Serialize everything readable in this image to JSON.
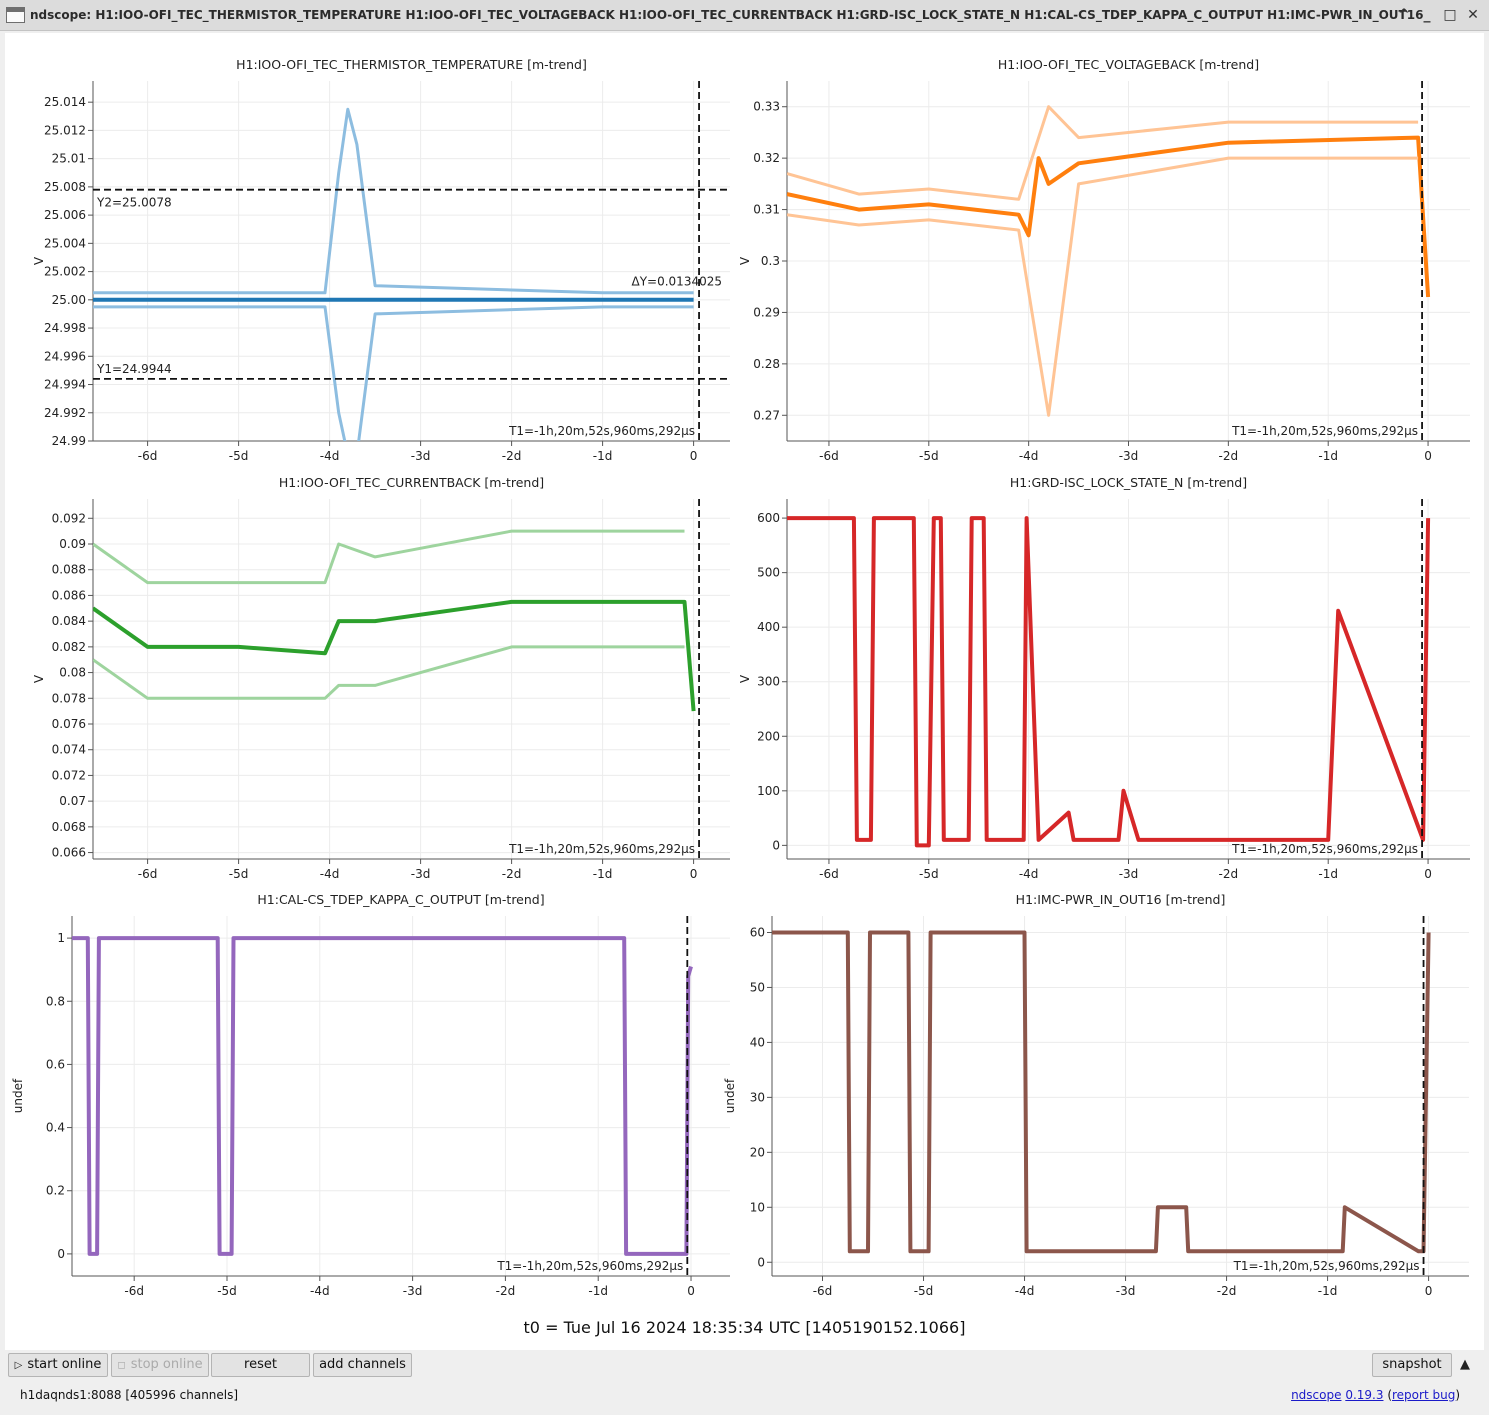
{
  "window": {
    "title": "ndscope: H1:IOO-OFI_TEC_THERMISTOR_TEMPERATURE H1:IOO-OFI_TEC_VOLTAGEBACK H1:IOO-OFI_TEC_CURRENTBACK H1:GRD-ISC_LOCK_STATE_N H1:CAL-CS_TDEP_KAPPA_C_OUTPUT H1:IMC-PWR_IN_OUT16",
    "controls": [
      "^",
      "_",
      "□",
      "✕"
    ]
  },
  "x_tick_labels": [
    "-6d",
    "-5d",
    "-4d",
    "-3d",
    "-2d",
    "-1d",
    "0"
  ],
  "cursor_T1": "T1=-1h,20m,52s,960ms,292µs",
  "t0_label": "t0 = Tue Jul 16 2024 18:35:34 UTC [1405190152.1066]",
  "buttons": {
    "start_online": "start online",
    "stop_online": "stop online",
    "reset": "reset",
    "add_channels": "add channels",
    "snapshot": "snapshot"
  },
  "status": {
    "server": "h1daqnds1:8088  [405996 channels]",
    "app_name": "ndscope",
    "version": "0.19.3",
    "report_bug": "report bug"
  },
  "chart_data": [
    {
      "type": "line",
      "title": "H1:IOO-OFI_TEC_THERMISTOR_TEMPERATURE [m-trend]",
      "ylabel": "V",
      "color": "#1f77b4",
      "band_color": "#8dbde0",
      "xlim": [
        -6.6,
        0.4
      ],
      "ylim": [
        24.99,
        25.0155
      ],
      "y_tick_labels": [
        "25.014",
        "25.012",
        "25.01",
        "25.008",
        "25.006",
        "25.004",
        "25.002",
        "25.00",
        "24.998",
        "24.996",
        "24.994",
        "24.992",
        "24.99"
      ],
      "y_tick_values": [
        25.014,
        25.012,
        25.01,
        25.008,
        25.006,
        25.004,
        25.002,
        25.0,
        24.998,
        24.996,
        24.994,
        24.992,
        24.99
      ],
      "y_cursors": [
        {
          "value": 25.0078,
          "label": "Y2=25.0078"
        },
        {
          "value": 24.9944,
          "label": "Y1=24.9944"
        }
      ],
      "delta_label": "ΔY=0.0134025",
      "t1_x": 0.06,
      "series": [
        {
          "kind": "mean",
          "x": [
            -6.6,
            -4.05,
            -3.85,
            -3.6,
            -3.4,
            -1.0,
            -0.1,
            0.0
          ],
          "y": [
            25.0,
            25.0,
            25.0,
            25.0,
            25.0,
            25.0,
            25.0,
            25.0
          ]
        },
        {
          "kind": "max",
          "x": [
            -6.6,
            -4.05,
            -3.9,
            -3.8,
            -3.7,
            -3.5,
            -1.0,
            0.0
          ],
          "y": [
            25.0005,
            25.0005,
            25.009,
            25.0135,
            25.011,
            25.001,
            25.0005,
            25.0005
          ]
        },
        {
          "kind": "min",
          "x": [
            -6.6,
            -4.05,
            -3.9,
            -3.8,
            -3.7,
            -3.5,
            -1.0,
            0.0
          ],
          "y": [
            24.9995,
            24.9995,
            24.992,
            24.989,
            24.989,
            24.999,
            24.9995,
            24.9995
          ]
        }
      ]
    },
    {
      "type": "line",
      "title": "H1:IOO-OFI_TEC_VOLTAGEBACK [m-trend]",
      "ylabel": "V",
      "color": "#ff7f0e",
      "band_color": "#ffc495",
      "xlim": [
        -6.42,
        0.42
      ],
      "ylim": [
        0.265,
        0.335
      ],
      "y_tick_labels": [
        "0.33",
        "0.32",
        "0.31",
        "0.3",
        "0.29",
        "0.28",
        "0.27"
      ],
      "y_tick_values": [
        0.33,
        0.32,
        0.31,
        0.3,
        0.29,
        0.28,
        0.27
      ],
      "t1_x": -0.06,
      "series": [
        {
          "kind": "mean",
          "x": [
            -6.42,
            -5.7,
            -5.0,
            -4.1,
            -4.0,
            -3.9,
            -3.8,
            -3.5,
            -2.0,
            -0.1,
            0.0
          ],
          "y": [
            0.313,
            0.31,
            0.311,
            0.309,
            0.305,
            0.32,
            0.315,
            0.319,
            0.323,
            0.324,
            0.293
          ]
        },
        {
          "kind": "max",
          "x": [
            -6.42,
            -5.7,
            -5.0,
            -4.1,
            -3.8,
            -3.5,
            -2.0,
            -0.1
          ],
          "y": [
            0.317,
            0.313,
            0.314,
            0.312,
            0.33,
            0.324,
            0.327,
            0.327
          ]
        },
        {
          "kind": "min",
          "x": [
            -6.42,
            -5.7,
            -5.0,
            -4.1,
            -3.8,
            -3.5,
            -2.0,
            -0.1
          ],
          "y": [
            0.309,
            0.307,
            0.308,
            0.306,
            0.27,
            0.315,
            0.32,
            0.32
          ]
        }
      ]
    },
    {
      "type": "line",
      "title": "H1:IOO-OFI_TEC_CURRENTBACK [m-trend]",
      "ylabel": "V",
      "color": "#2ca02c",
      "band_color": "#9ed49e",
      "xlim": [
        -6.6,
        0.4
      ],
      "ylim": [
        0.0655,
        0.0935
      ],
      "y_tick_labels": [
        "0.092",
        "0.09",
        "0.088",
        "0.086",
        "0.084",
        "0.082",
        "0.08",
        "0.078",
        "0.076",
        "0.074",
        "0.072",
        "0.07",
        "0.068",
        "0.066"
      ],
      "y_tick_values": [
        0.092,
        0.09,
        0.088,
        0.086,
        0.084,
        0.082,
        0.08,
        0.078,
        0.076,
        0.074,
        0.072,
        0.07,
        0.068,
        0.066
      ],
      "t1_x": 0.06,
      "series": [
        {
          "kind": "mean",
          "x": [
            -6.6,
            -6.0,
            -5.0,
            -4.05,
            -3.9,
            -3.7,
            -3.5,
            -2.0,
            -0.1,
            0.0
          ],
          "y": [
            0.085,
            0.082,
            0.082,
            0.0815,
            0.084,
            0.084,
            0.084,
            0.0855,
            0.0855,
            0.077
          ]
        },
        {
          "kind": "max",
          "x": [
            -6.6,
            -6.0,
            -5.0,
            -4.05,
            -3.9,
            -3.5,
            -2.0,
            -0.1
          ],
          "y": [
            0.09,
            0.087,
            0.087,
            0.087,
            0.09,
            0.089,
            0.091,
            0.091
          ]
        },
        {
          "kind": "min",
          "x": [
            -6.6,
            -6.0,
            -5.0,
            -4.05,
            -3.9,
            -3.5,
            -2.0,
            -0.1
          ],
          "y": [
            0.081,
            0.078,
            0.078,
            0.078,
            0.079,
            0.079,
            0.082,
            0.082
          ]
        }
      ]
    },
    {
      "type": "line",
      "title": "H1:GRD-ISC_LOCK_STATE_N [m-trend]",
      "ylabel": "V",
      "color": "#d62728",
      "band_color": "#eda0a0",
      "xlim": [
        -6.42,
        0.42
      ],
      "ylim": [
        -25,
        635
      ],
      "y_tick_labels": [
        "600",
        "500",
        "400",
        "300",
        "200",
        "100",
        "0"
      ],
      "y_tick_values": [
        600,
        500,
        400,
        300,
        200,
        100,
        0
      ],
      "t1_x": -0.06,
      "series": [
        {
          "kind": "mean",
          "x": [
            -6.42,
            -5.75,
            -5.72,
            -5.58,
            -5.55,
            -5.15,
            -5.12,
            -5.0,
            -4.95,
            -4.88,
            -4.85,
            -4.6,
            -4.57,
            -4.45,
            -4.42,
            -4.05,
            -4.02,
            -3.9,
            -3.6,
            -3.55,
            -3.1,
            -3.05,
            -2.9,
            -2.8,
            -1.0,
            -0.9,
            -0.05,
            0.0
          ],
          "y": [
            600,
            600,
            10,
            10,
            600,
            600,
            0,
            0,
            600,
            600,
            10,
            10,
            600,
            600,
            10,
            10,
            600,
            10,
            60,
            10,
            10,
            100,
            10,
            10,
            10,
            430,
            10,
            600
          ]
        }
      ]
    },
    {
      "type": "line",
      "title": "H1:CAL-CS_TDEP_KAPPA_C_OUTPUT [m-trend]",
      "ylabel": "undef",
      "color": "#9467bd",
      "band_color": "#cbb4df",
      "xlim": [
        -6.67,
        0.42
      ],
      "ylim": [
        -0.07,
        1.07
      ],
      "y_tick_labels": [
        "1",
        "0.8",
        "0.6",
        "0.4",
        "0.2",
        "0"
      ],
      "y_tick_values": [
        1,
        0.8,
        0.6,
        0.4,
        0.2,
        0
      ],
      "t1_x": -0.04,
      "series": [
        {
          "kind": "mean",
          "x": [
            -6.67,
            -6.5,
            -6.48,
            -6.4,
            -6.38,
            -5.1,
            -5.08,
            -4.95,
            -4.93,
            -0.72,
            -0.7,
            -0.05,
            -0.03,
            0.0
          ],
          "y": [
            1.0,
            1.0,
            0.0,
            0.0,
            1.0,
            1.0,
            0.0,
            0.0,
            1.0,
            1.0,
            0.0,
            0.0,
            0.88,
            0.91
          ]
        }
      ]
    },
    {
      "type": "line",
      "title": "H1:IMC-PWR_IN_OUT16 [m-trend]",
      "ylabel": "undef",
      "color": "#8c564b",
      "band_color": "#c9a89f",
      "xlim": [
        -6.5,
        0.4
      ],
      "ylim": [
        -2.5,
        63
      ],
      "y_tick_labels": [
        "60",
        "50",
        "40",
        "30",
        "20",
        "10",
        "0"
      ],
      "y_tick_values": [
        60,
        50,
        40,
        30,
        20,
        10,
        0
      ],
      "t1_x": -0.05,
      "series": [
        {
          "kind": "mean",
          "x": [
            -6.5,
            -5.75,
            -5.73,
            -5.55,
            -5.53,
            -5.15,
            -5.13,
            -4.95,
            -4.93,
            -4.0,
            -3.98,
            -3.8,
            -3.6,
            -3.58,
            -2.7,
            -2.68,
            -2.4,
            -2.38,
            -0.85,
            -0.83,
            -0.1,
            -0.05,
            0.0
          ],
          "y": [
            60,
            60,
            2,
            2,
            60,
            60,
            2,
            2,
            60,
            60,
            2,
            2,
            2,
            2,
            2,
            10,
            10,
            2,
            2,
            10,
            2,
            2,
            60
          ]
        }
      ]
    }
  ]
}
